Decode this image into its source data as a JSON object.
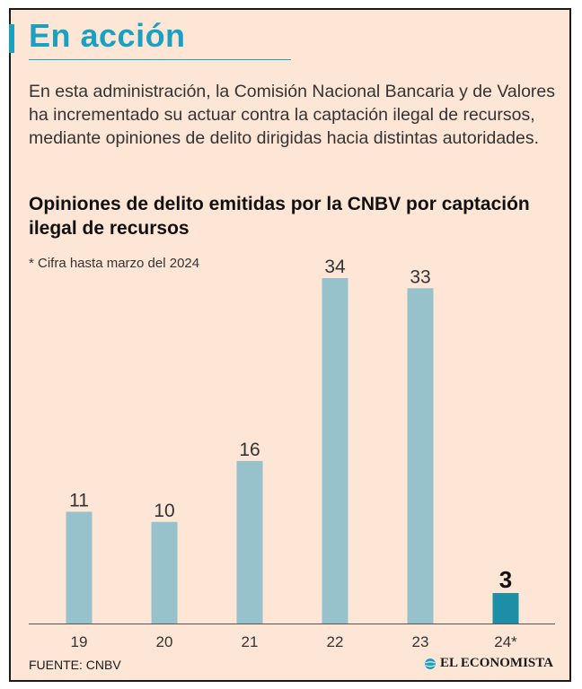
{
  "header": {
    "title": "En acción",
    "intro": "En esta administración, la Comisión Nacional Bancaria y de Valores ha incrementado su actuar contra la captación ilegal de recursos, mediante opiniones de delito dirigidas hacia distintas autoridades."
  },
  "chart_data": {
    "type": "bar",
    "title": "Opiniones de delito emitidas por la CNBV por captación ilegal de recursos",
    "note": "* Cifra hasta marzo del 2024",
    "categories": [
      "19",
      "20",
      "21",
      "22",
      "23",
      "24*"
    ],
    "values": [
      11,
      10,
      16,
      34,
      33,
      3
    ],
    "ylim": [
      0,
      34
    ],
    "xlabel": "",
    "ylabel": "",
    "highlight_index": 5,
    "colors": {
      "bar": "#97c2cb",
      "highlight": "#1c8fa6",
      "axis": "#555555",
      "label": "#333333"
    }
  },
  "footer": {
    "source": "FUENTE: CNBV",
    "brand": "EL ECONOMISTA"
  }
}
